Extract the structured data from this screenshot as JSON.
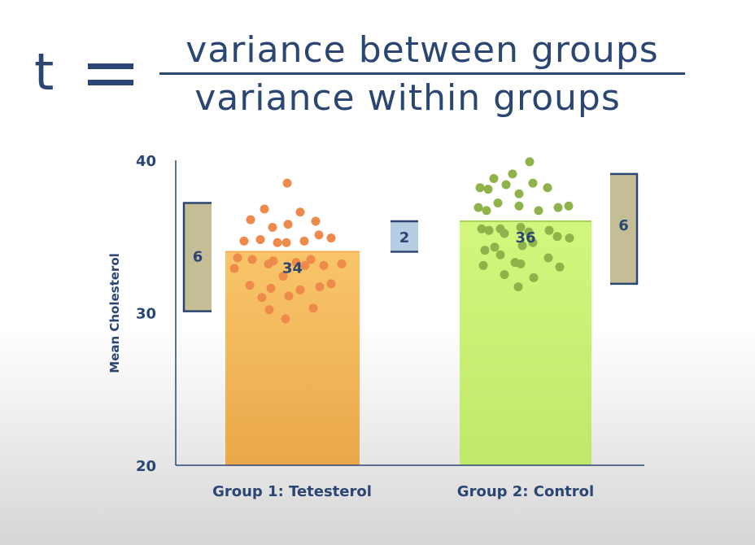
{
  "formula": {
    "lhs": "t",
    "numerator": "variance between groups",
    "denominator": "variance within groups"
  },
  "chart_data": {
    "type": "bar",
    "ylabel": "Mean Cholesterol",
    "ylim": [
      20,
      40
    ],
    "yticks": [
      20,
      30,
      40
    ],
    "categories": [
      "Group 1: Tetesterol",
      "Group 2: Control"
    ],
    "values": [
      34,
      36
    ],
    "bar_labels": [
      "34",
      "36"
    ],
    "colors": [
      "#f7bb5c",
      "#cdf57a"
    ],
    "dot_colors": [
      "#ef8a4d",
      "#8fb24a"
    ],
    "points": [
      [
        38.5,
        36.8,
        36.6,
        36.1,
        36.0,
        35.8,
        35.6,
        35.1,
        34.9,
        34.8,
        34.7,
        34.7,
        34.6,
        34.6,
        33.6,
        33.5,
        33.5,
        33.4,
        33.3,
        33.2,
        33.2,
        33.1,
        33.1,
        32.9,
        32.4,
        31.9,
        31.8,
        31.7,
        31.6,
        31.5,
        31.1,
        31.0,
        30.3,
        30.2,
        29.6
      ],
      [
        39.9,
        39.1,
        38.8,
        38.5,
        38.4,
        38.2,
        38.2,
        38.1,
        37.8,
        37.2,
        37.0,
        37.0,
        36.9,
        36.9,
        36.7,
        36.7,
        35.6,
        35.5,
        35.5,
        35.4,
        35.4,
        35.3,
        35.2,
        35.0,
        34.9,
        34.6,
        34.4,
        34.3,
        34.1,
        33.8,
        33.6,
        33.3,
        33.2,
        33.1,
        33.0,
        32.5,
        32.3,
        31.7
      ]
    ],
    "spread_brackets": [
      {
        "label": "6",
        "from": 30.1,
        "to": 37.2
      },
      {
        "label": "6",
        "from": 31.9,
        "to": 39.1
      }
    ],
    "difference_bracket": {
      "label": "2",
      "from": 34,
      "to": 36
    }
  }
}
